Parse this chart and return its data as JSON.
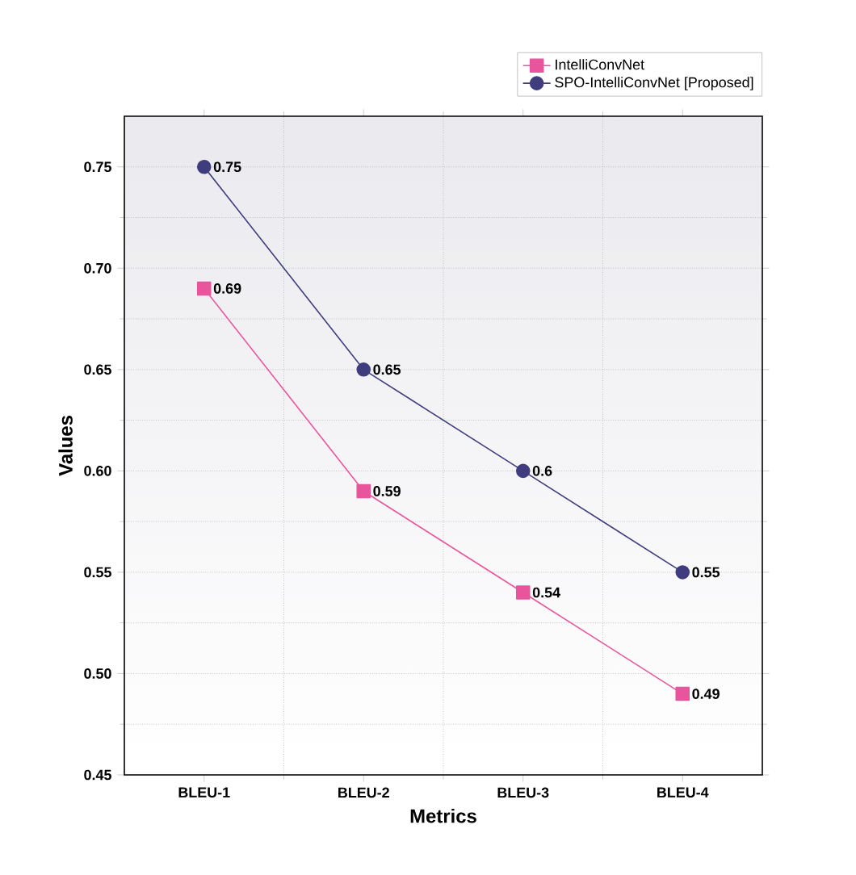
{
  "chart_data": {
    "type": "line",
    "xlabel": "Metrics",
    "ylabel": "Values",
    "categories": [
      "BLEU-1",
      "BLEU-2",
      "BLEU-3",
      "BLEU-4"
    ],
    "series": [
      {
        "name": "IntelliConvNet",
        "color": "#e8559d",
        "marker": "square",
        "values": [
          0.69,
          0.59,
          0.54,
          0.49
        ]
      },
      {
        "name": "SPO-IntelliConvNet [Proposed]",
        "color": "#3f3d7e",
        "marker": "circle",
        "values": [
          0.75,
          0.65,
          0.6,
          0.55
        ]
      }
    ],
    "ylim": [
      0.45,
      0.775
    ],
    "yticks": [
      0.45,
      {
        "value": 0.5,
        "label": "0.50"
      },
      0.55,
      {
        "value": 0.6,
        "label": "0.60"
      },
      0.65,
      {
        "value": 0.7,
        "label": "0.70"
      },
      0.75
    ],
    "grid": true,
    "legend": "top right",
    "data_labels": true
  }
}
